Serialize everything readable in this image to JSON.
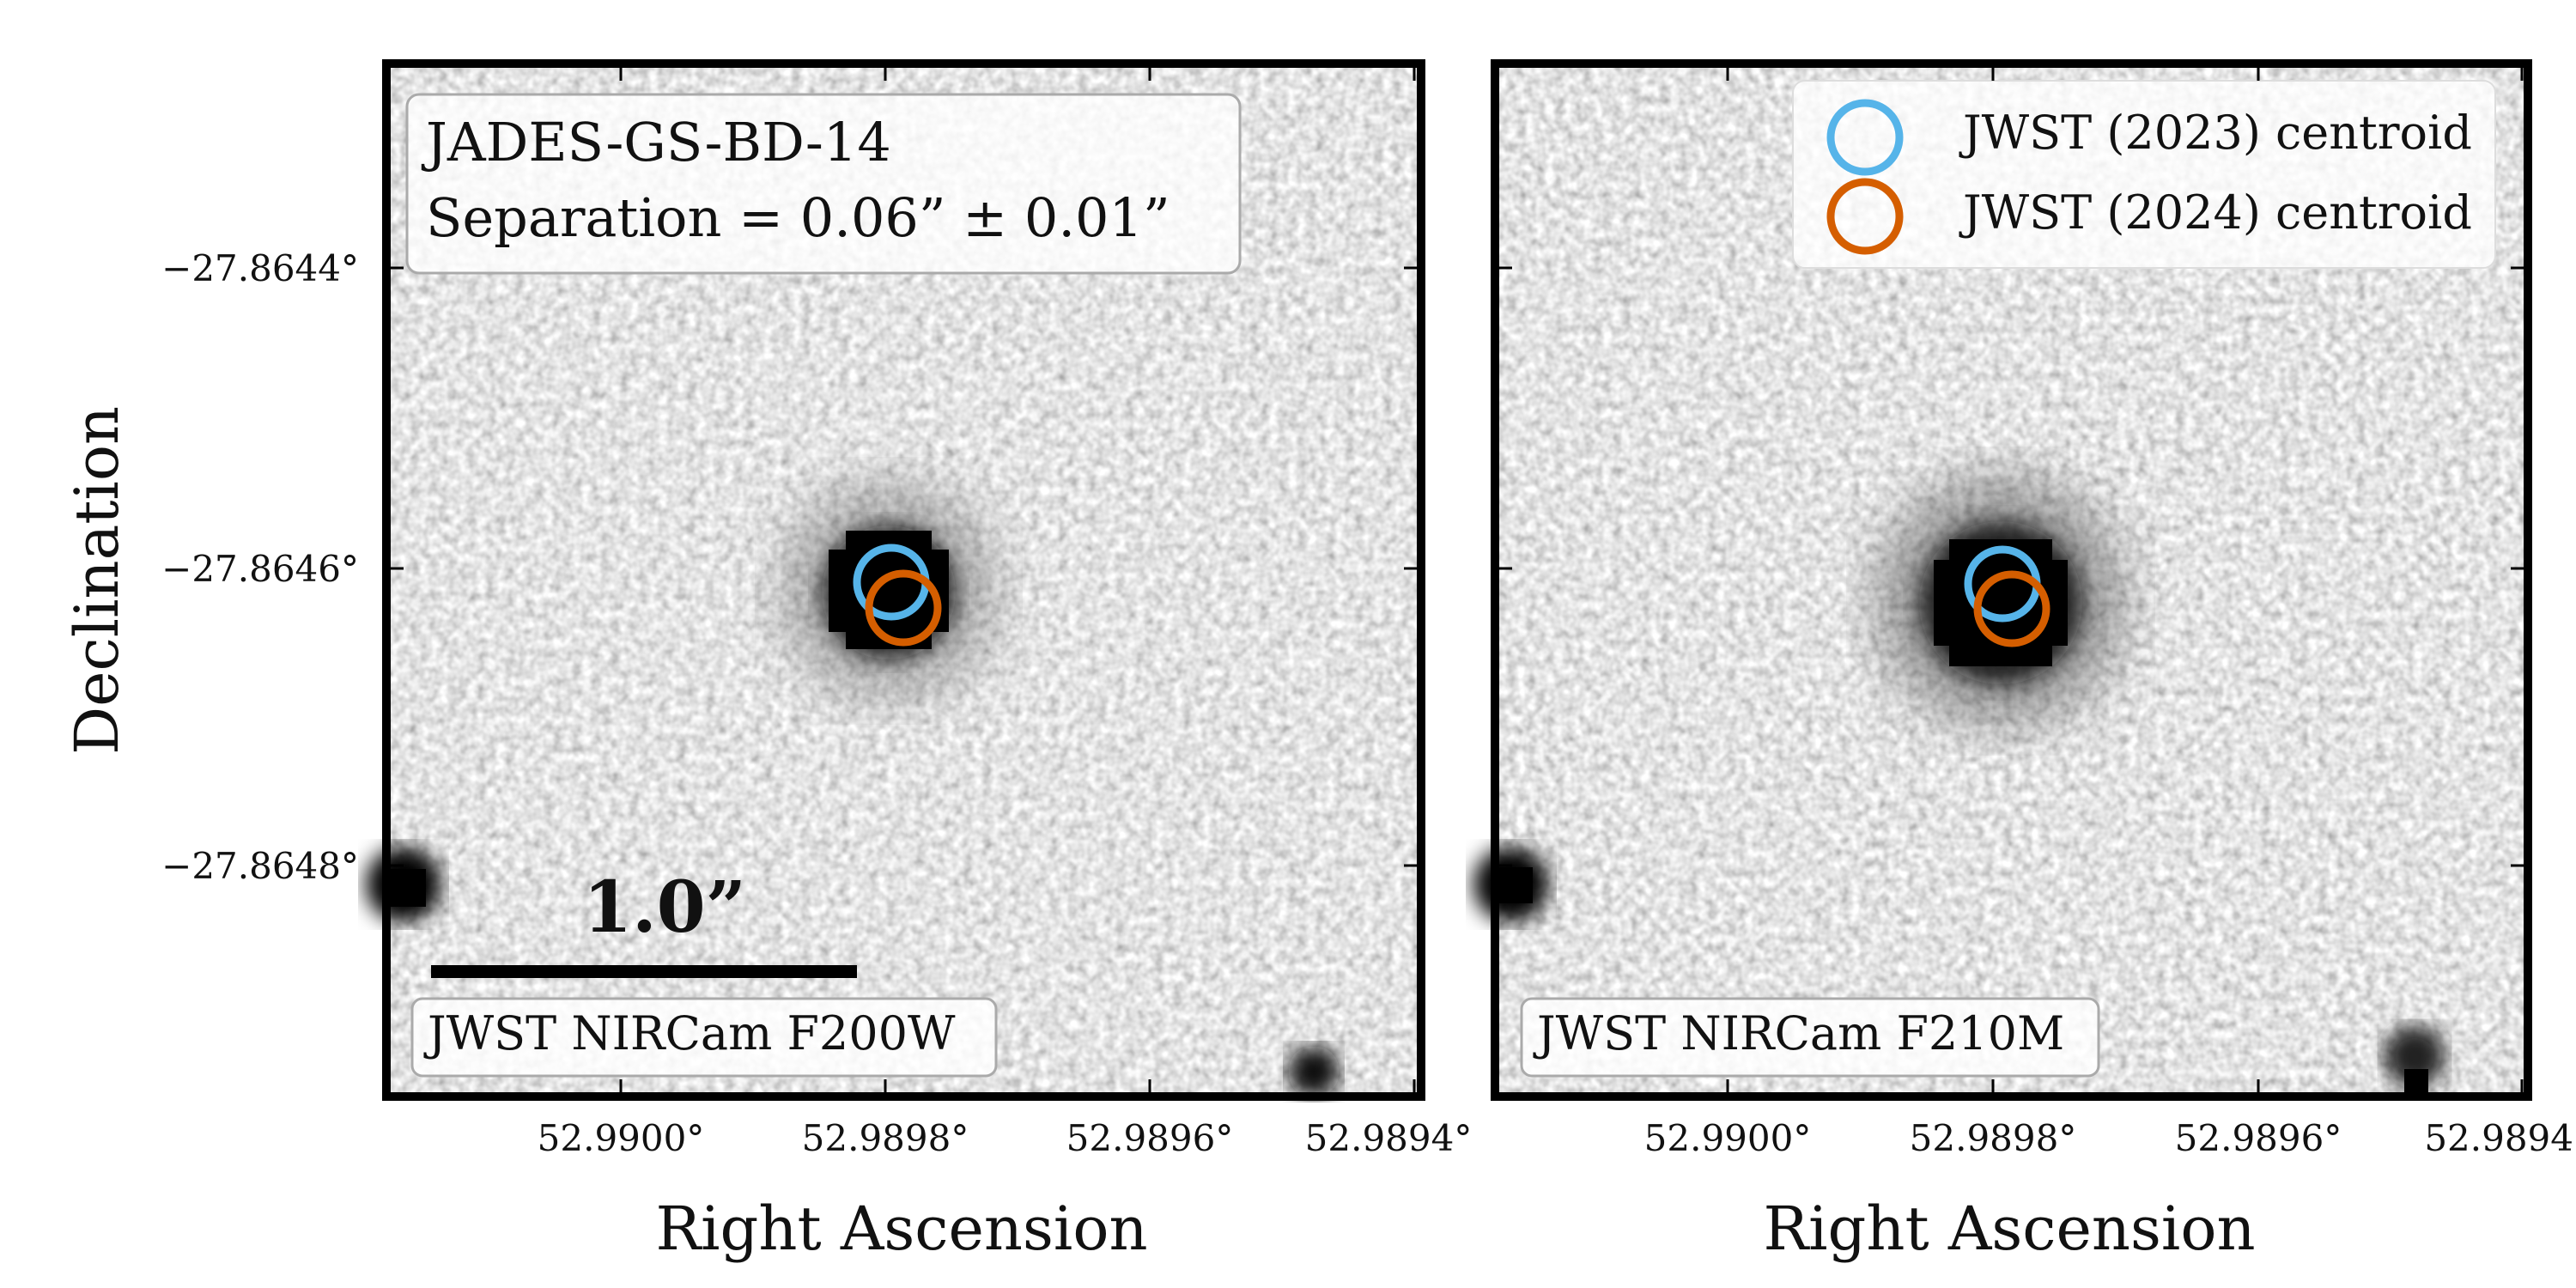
{
  "figure": {
    "ylabel": "Declination",
    "dec_ticks": [
      "−27.8644°",
      "−27.8646°",
      "−27.8648°"
    ],
    "colors": {
      "centroid_2023": "#56b4e9",
      "centroid_2024": "#d55e00",
      "frame": "#000000"
    }
  },
  "panels": [
    {
      "xlabel": "Right Ascension",
      "ra_ticks": [
        "52.9900°",
        "52.9898°",
        "52.9896°",
        "52.9894°"
      ],
      "info_lines": [
        "JADES-GS-BD-14",
        "Separation = 0.06” ± 0.01”"
      ],
      "scalebar_label": "1.0”",
      "filter_label": "JWST NIRCam F200W"
    },
    {
      "xlabel": "Right Ascension",
      "ra_ticks": [
        "52.9900°",
        "52.9898°",
        "52.9896°",
        "52.9894"
      ],
      "legend": [
        "JWST (2023) centroid",
        "JWST (2024) centroid"
      ],
      "filter_label": "JWST NIRCam F210M"
    }
  ]
}
